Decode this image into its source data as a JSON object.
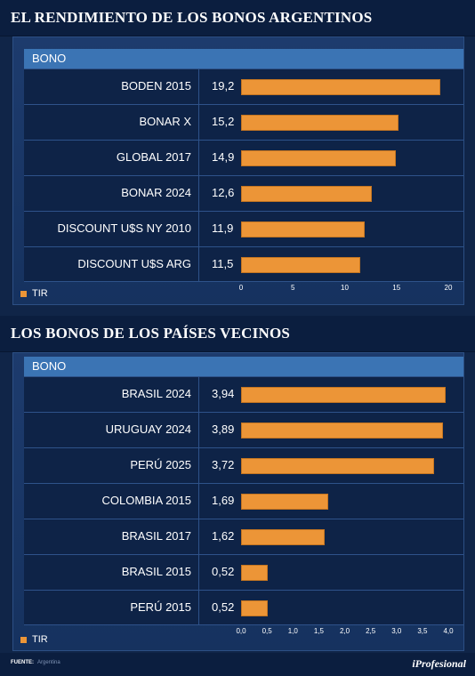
{
  "chart_data": [
    {
      "type": "bar",
      "title": "EL RENDIMIENTO DE LOS BONOS ARGENTINOS",
      "table_header": "BONO",
      "categories": [
        "BODEN 2015",
        "BONAR X",
        "GLOBAL 2017",
        "BONAR 2024",
        "DISCOUNT U$S NY 2010",
        "DISCOUNT U$S ARG"
      ],
      "value_labels": [
        "19,2",
        "15,2",
        "14,9",
        "12,6",
        "11,9",
        "11,5"
      ],
      "series": [
        {
          "name": "TIR",
          "values": [
            19.2,
            15.2,
            14.9,
            12.6,
            11.9,
            11.5
          ]
        }
      ],
      "xlim": [
        0,
        20
      ],
      "ticks": [
        0,
        5,
        10,
        15,
        20
      ],
      "tick_labels": [
        "0",
        "5",
        "10",
        "15",
        "20"
      ],
      "legend": "bottom-left",
      "color": "#ec9537"
    },
    {
      "type": "bar",
      "title": "LOS BONOS DE LOS PAÍSES VECINOS",
      "table_header": "BONO",
      "categories": [
        "BRASIL 2024",
        "URUGUAY 2024",
        "PERÚ 2025",
        "COLOMBIA 2015",
        "BRASIL 2017",
        "BRASIL 2015",
        "PERÚ 2015"
      ],
      "value_labels": [
        "3,94",
        "3,89",
        "3,72",
        "1,69",
        "1,62",
        "0,52",
        "0,52"
      ],
      "series": [
        {
          "name": "TIR",
          "values": [
            3.94,
            3.89,
            3.72,
            1.69,
            1.62,
            0.52,
            0.52
          ]
        }
      ],
      "xlim": [
        0,
        4
      ],
      "ticks": [
        0,
        0.5,
        1,
        1.5,
        2,
        2.5,
        3,
        3.5,
        4
      ],
      "tick_labels": [
        "0,0",
        "0,5",
        "1,0",
        "1,5",
        "2,0",
        "2,5",
        "3,0",
        "3,5",
        "4,0"
      ],
      "legend": "bottom-left",
      "color": "#ec9537"
    }
  ],
  "footer": {
    "source_label": "FUENTE:",
    "source_value": "Argentina",
    "brand": "iProfesional"
  }
}
